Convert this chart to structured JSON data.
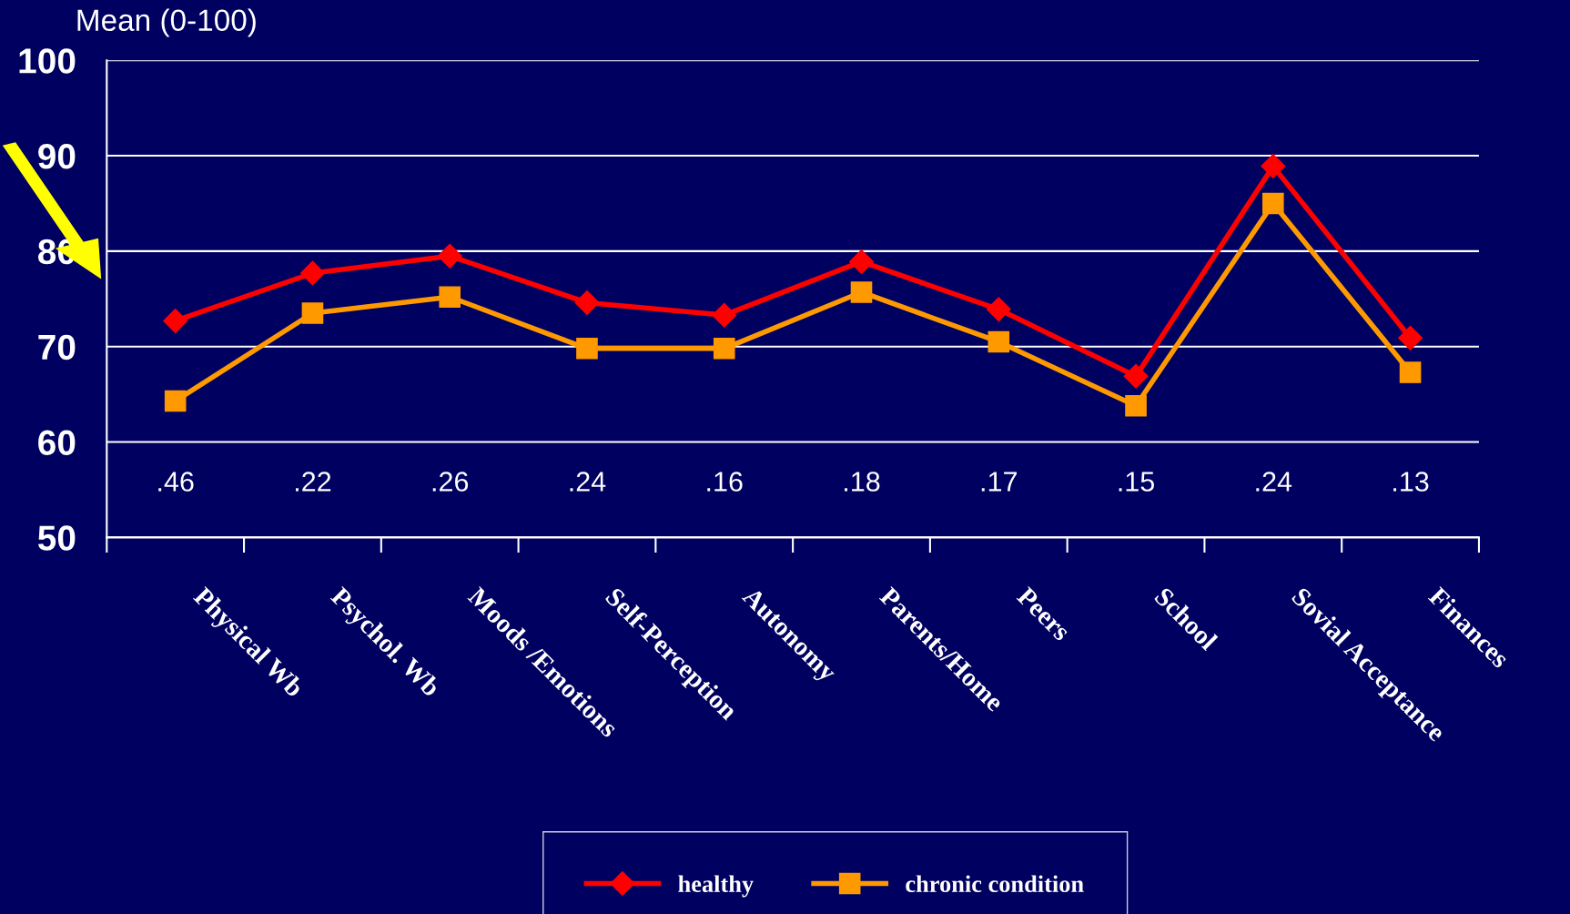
{
  "chart_data": {
    "type": "line",
    "ylabel": "Mean (0-100)",
    "categories": [
      "Physical Wb",
      "Psychol. Wb",
      "Moods /Emotions",
      "Self-Perception",
      "Autonomy",
      "Parents/Home",
      "Peers",
      "School",
      "Sovial Acceptance",
      "Finances"
    ],
    "series": [
      {
        "name": "healthy",
        "color": "#ff0000",
        "marker": "diamond",
        "values": [
          72.7,
          77.7,
          79.5,
          74.6,
          73.3,
          78.9,
          73.9,
          66.9,
          88.9,
          70.9
        ]
      },
      {
        "name": "chronic condition",
        "color": "#ff9900",
        "marker": "square",
        "values": [
          64.3,
          73.5,
          75.2,
          69.8,
          69.8,
          75.7,
          70.5,
          63.8,
          85.0,
          67.3
        ]
      }
    ],
    "ylim": [
      50,
      100
    ],
    "yticks": [
      50,
      60,
      70,
      80,
      90,
      100
    ],
    "grid": "y",
    "legend": "bottom",
    "line_style": "solid",
    "annotations": [
      ".46",
      ".22",
      ".26",
      ".24",
      ".16",
      ".18",
      ".17",
      ".15",
      ".24",
      ".13"
    ]
  }
}
